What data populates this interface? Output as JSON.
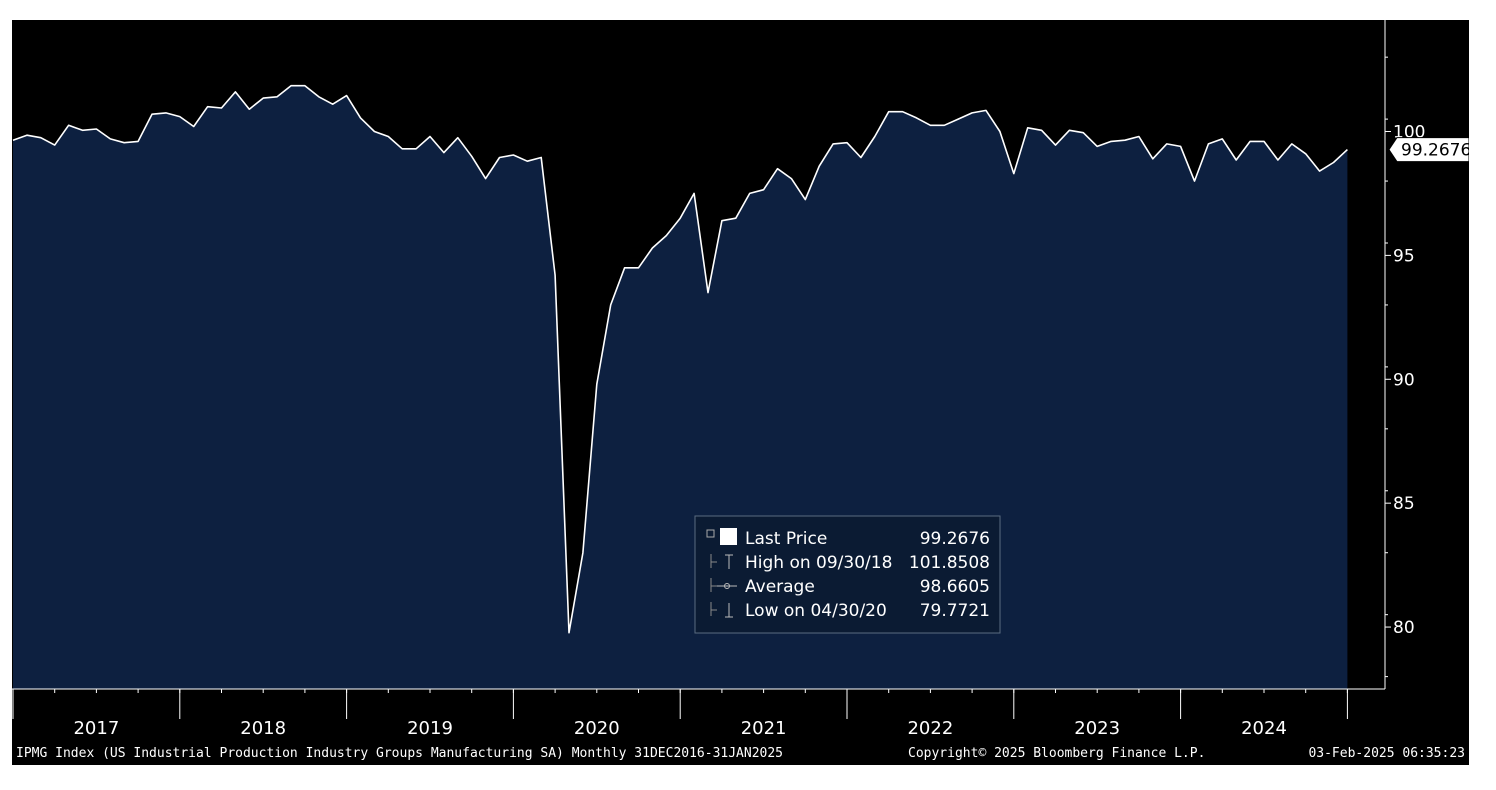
{
  "chart_data": {
    "type": "area",
    "frequency": "Monthly",
    "x_start": "2016-12-31",
    "x_end": "2025-01-31",
    "ylim": [
      77.5,
      104.5
    ],
    "y_ticks": [
      80,
      85,
      90,
      95,
      100
    ],
    "year_labels": [
      "2017",
      "2018",
      "2019",
      "2020",
      "2021",
      "2022",
      "2023",
      "2024"
    ],
    "series": [
      {
        "name": "Last Price",
        "values": [
          99.65,
          99.85,
          99.75,
          99.45,
          100.25,
          100.05,
          100.1,
          99.7,
          99.55,
          99.6,
          100.7,
          100.75,
          100.6,
          100.2,
          101.0,
          100.95,
          101.6,
          100.9,
          101.35,
          101.4,
          101.85,
          101.85,
          101.4,
          101.1,
          101.45,
          100.55,
          100.0,
          99.8,
          99.3,
          99.3,
          99.8,
          99.15,
          99.75,
          99.0,
          98.1,
          98.95,
          99.05,
          98.8,
          98.95,
          94.2,
          79.7721,
          83.0,
          89.8,
          93.0,
          94.5,
          94.5,
          95.3,
          95.8,
          96.5,
          97.5,
          93.5,
          96.4,
          96.5,
          97.5,
          97.65,
          98.5,
          98.1,
          97.25,
          98.6,
          99.5,
          99.55,
          98.95,
          99.8,
          100.8,
          100.8,
          100.55,
          100.25,
          100.25,
          100.5,
          100.75,
          100.85,
          100.0,
          98.3,
          100.15,
          100.05,
          99.45,
          100.05,
          99.95,
          99.4,
          99.6,
          99.65,
          99.8,
          98.9,
          99.5,
          99.4,
          98.0,
          99.5,
          99.7,
          98.85,
          99.6,
          99.6,
          98.85,
          99.5,
          99.1,
          98.4,
          98.75,
          99.2676
        ]
      }
    ],
    "last_value_label": "99.2676",
    "colors": {
      "area_fill": "#0d2040",
      "line": "#ffffff",
      "background": "#000000",
      "axis": "#ffffff"
    },
    "legend": {
      "placement": "bottom-center",
      "rows": [
        {
          "icon": "square",
          "label": "Last Price",
          "value": "99.2676"
        },
        {
          "icon": "high",
          "label": "High on 09/30/18",
          "value": "101.8508"
        },
        {
          "icon": "average",
          "label": "Average",
          "value": "98.6605"
        },
        {
          "icon": "low",
          "label": "Low on 04/30/20",
          "value": "79.7721"
        }
      ]
    },
    "footer": {
      "description": "IPMG Index (US Industrial Production Industry Groups Manufacturing SA)  Monthly 31DEC2016-31JAN2025",
      "copyright": "Copyright© 2025 Bloomberg Finance L.P.",
      "timestamp": "03-Feb-2025 06:35:23"
    }
  }
}
